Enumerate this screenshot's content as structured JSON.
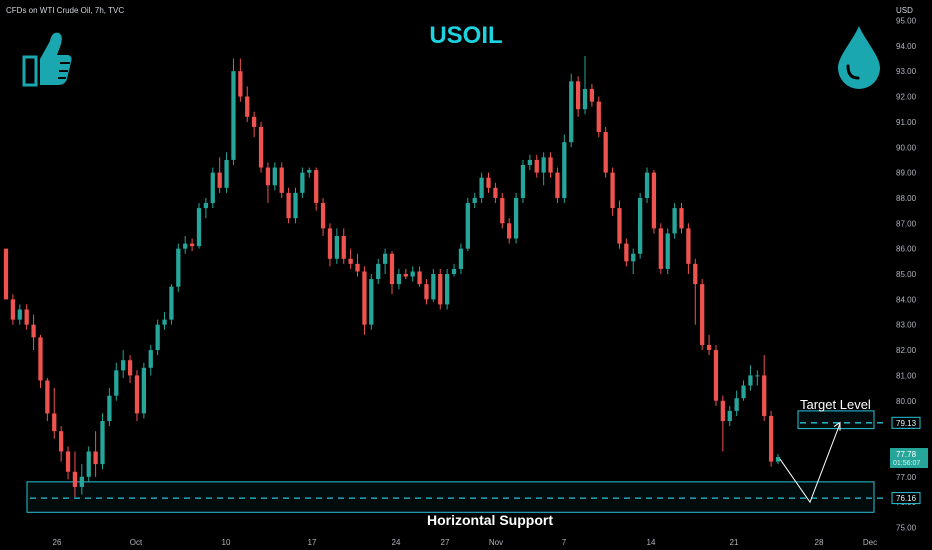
{
  "header": {
    "symbol_line": "CFDs on WTI Crude Oil, 7h, TVC",
    "title": "USOIL",
    "currency": "USD"
  },
  "icons": {
    "left": "thumbs-up-icon",
    "right": "water-drop-icon",
    "accent_color": "#1aa7b0"
  },
  "annotations": {
    "target_label": "Target Level",
    "support_label": "Horizontal Support"
  },
  "chart_data": {
    "type": "candlestick",
    "title": "USOIL",
    "ylabel": "USD",
    "ylim": [
      74.5,
      95.5
    ],
    "yticks": [
      75,
      76,
      77,
      78,
      79,
      80,
      81,
      82,
      83,
      84,
      85,
      86,
      87,
      88,
      89,
      90,
      91,
      92,
      93,
      94,
      95
    ],
    "xticks": [
      "26",
      "Oct",
      "10",
      "17",
      "24",
      "27",
      "Nov",
      "7",
      "14",
      "21",
      "28",
      "Dec"
    ],
    "colors": {
      "up": "#26a69a",
      "down": "#ef5350",
      "levels": "#29c4d8"
    },
    "price_labels": {
      "target": "79.13",
      "current": "77.78",
      "timer": "01:56:07",
      "support": "76.16"
    },
    "levels": {
      "target": 79.13,
      "support": 76.16,
      "support_zone": [
        75.6,
        76.8
      ],
      "target_zone": [
        78.9,
        79.6
      ]
    },
    "projection": [
      [
        77.7,
        0
      ],
      [
        76.0,
        5
      ],
      [
        79.1,
        10
      ]
    ],
    "ohlc": [
      [
        86.0,
        86.0,
        84.0,
        84.0
      ],
      [
        84.0,
        84.2,
        83.0,
        83.2
      ],
      [
        83.2,
        83.8,
        83.0,
        83.6
      ],
      [
        83.6,
        83.8,
        82.8,
        83.0
      ],
      [
        83.0,
        83.4,
        82.0,
        82.5
      ],
      [
        82.5,
        82.6,
        80.5,
        80.8
      ],
      [
        80.8,
        80.9,
        79.2,
        79.5
      ],
      [
        79.5,
        80.5,
        78.5,
        78.8
      ],
      [
        78.8,
        79.0,
        77.6,
        78.0
      ],
      [
        78.0,
        78.2,
        76.9,
        77.2
      ],
      [
        77.2,
        78.0,
        76.2,
        76.6
      ],
      [
        76.6,
        77.5,
        76.3,
        77.0
      ],
      [
        77.0,
        78.2,
        76.8,
        78.0
      ],
      [
        78.0,
        78.8,
        77.0,
        77.5
      ],
      [
        77.5,
        79.5,
        77.3,
        79.2
      ],
      [
        79.2,
        80.5,
        79.0,
        80.2
      ],
      [
        80.2,
        81.5,
        80.0,
        81.2
      ],
      [
        81.2,
        82.0,
        80.9,
        81.6
      ],
      [
        81.6,
        81.8,
        80.7,
        81.0
      ],
      [
        81.0,
        81.2,
        79.2,
        79.5
      ],
      [
        79.5,
        81.5,
        79.3,
        81.3
      ],
      [
        81.3,
        82.2,
        81.0,
        82.0
      ],
      [
        82.0,
        83.2,
        81.8,
        83.0
      ],
      [
        83.0,
        83.5,
        82.8,
        83.2
      ],
      [
        83.2,
        84.6,
        83.0,
        84.5
      ],
      [
        84.5,
        86.2,
        84.3,
        86.0
      ],
      [
        86.0,
        86.5,
        85.8,
        86.2
      ],
      [
        86.2,
        86.4,
        85.9,
        86.1
      ],
      [
        86.1,
        87.8,
        86.0,
        87.6
      ],
      [
        87.6,
        88.0,
        87.2,
        87.8
      ],
      [
        87.8,
        89.2,
        87.6,
        89.0
      ],
      [
        89.0,
        89.6,
        88.2,
        88.4
      ],
      [
        88.4,
        89.8,
        88.2,
        89.5
      ],
      [
        89.5,
        93.5,
        89.3,
        93.0
      ],
      [
        93.0,
        93.5,
        91.8,
        92.0
      ],
      [
        92.0,
        92.4,
        91.0,
        91.2
      ],
      [
        91.2,
        91.4,
        90.4,
        90.8
      ],
      [
        90.8,
        91.0,
        89.0,
        89.2
      ],
      [
        89.2,
        89.4,
        87.8,
        88.5
      ],
      [
        88.5,
        89.4,
        88.3,
        89.2
      ],
      [
        89.2,
        89.4,
        88.0,
        88.2
      ],
      [
        88.2,
        88.4,
        87.0,
        87.2
      ],
      [
        87.2,
        88.4,
        87.0,
        88.2
      ],
      [
        88.2,
        89.2,
        88.0,
        89.0
      ],
      [
        89.0,
        89.2,
        88.8,
        89.1
      ],
      [
        89.1,
        89.2,
        87.5,
        87.8
      ],
      [
        87.8,
        88.0,
        86.5,
        86.8
      ],
      [
        86.8,
        87.0,
        85.3,
        85.6
      ],
      [
        85.6,
        86.8,
        85.4,
        86.5
      ],
      [
        86.5,
        86.8,
        85.4,
        85.6
      ],
      [
        85.6,
        86.0,
        85.2,
        85.4
      ],
      [
        85.4,
        85.8,
        84.9,
        85.1
      ],
      [
        85.1,
        85.3,
        82.6,
        83.0
      ],
      [
        83.0,
        85.0,
        82.8,
        84.8
      ],
      [
        84.8,
        85.6,
        84.6,
        85.4
      ],
      [
        85.4,
        86.0,
        85.0,
        85.8
      ],
      [
        85.8,
        85.9,
        84.2,
        84.6
      ],
      [
        84.6,
        85.2,
        84.4,
        85.0
      ],
      [
        85.0,
        85.2,
        84.8,
        84.9
      ],
      [
        84.9,
        85.3,
        84.7,
        85.1
      ],
      [
        85.1,
        85.3,
        84.5,
        84.6
      ],
      [
        84.6,
        84.8,
        83.8,
        84.0
      ],
      [
        84.0,
        85.2,
        83.9,
        85.0
      ],
      [
        85.0,
        85.2,
        83.6,
        83.8
      ],
      [
        83.8,
        85.2,
        83.6,
        85.0
      ],
      [
        85.0,
        85.4,
        84.9,
        85.2
      ],
      [
        85.2,
        86.2,
        85.0,
        86.0
      ],
      [
        86.0,
        88.0,
        85.9,
        87.8
      ],
      [
        87.8,
        88.2,
        87.6,
        88.0
      ],
      [
        88.0,
        89.0,
        87.8,
        88.8
      ],
      [
        88.8,
        89.0,
        88.2,
        88.4
      ],
      [
        88.4,
        88.6,
        87.8,
        88.0
      ],
      [
        88.0,
        88.2,
        86.8,
        87.0
      ],
      [
        87.0,
        87.2,
        86.2,
        86.4
      ],
      [
        86.4,
        88.2,
        86.2,
        88.0
      ],
      [
        88.0,
        89.5,
        87.8,
        89.3
      ],
      [
        89.3,
        89.7,
        89.1,
        89.5
      ],
      [
        89.5,
        89.7,
        88.8,
        89.0
      ],
      [
        89.0,
        89.8,
        88.5,
        89.6
      ],
      [
        89.6,
        89.8,
        88.8,
        89.0
      ],
      [
        89.0,
        89.2,
        87.8,
        88.0
      ],
      [
        88.0,
        90.5,
        87.8,
        90.2
      ],
      [
        90.2,
        92.9,
        90.0,
        92.6
      ],
      [
        92.6,
        92.8,
        91.2,
        91.5
      ],
      [
        91.5,
        93.6,
        91.3,
        92.3
      ],
      [
        92.3,
        92.5,
        91.6,
        91.8
      ],
      [
        91.8,
        92.0,
        90.4,
        90.6
      ],
      [
        90.6,
        90.8,
        88.8,
        89.0
      ],
      [
        89.0,
        89.2,
        87.3,
        87.6
      ],
      [
        87.6,
        87.9,
        86.0,
        86.2
      ],
      [
        86.2,
        86.4,
        85.3,
        85.5
      ],
      [
        85.5,
        86.0,
        85.0,
        85.8
      ],
      [
        85.8,
        88.2,
        85.6,
        88.0
      ],
      [
        88.0,
        89.2,
        87.8,
        89.0
      ],
      [
        89.0,
        89.1,
        86.6,
        86.8
      ],
      [
        86.8,
        87.0,
        85.0,
        85.2
      ],
      [
        85.2,
        86.8,
        85.0,
        86.6
      ],
      [
        86.6,
        87.8,
        86.4,
        87.6
      ],
      [
        87.6,
        87.8,
        86.6,
        86.8
      ],
      [
        86.8,
        87.0,
        85.0,
        85.4
      ],
      [
        85.4,
        85.6,
        83.0,
        84.6
      ],
      [
        84.6,
        84.8,
        82.0,
        82.2
      ],
      [
        82.2,
        82.6,
        81.8,
        82.0
      ],
      [
        82.0,
        82.2,
        79.8,
        80.0
      ],
      [
        80.0,
        80.2,
        78.0,
        79.2
      ],
      [
        79.2,
        79.8,
        79.0,
        79.6
      ],
      [
        79.6,
        80.4,
        79.4,
        80.1
      ],
      [
        80.1,
        80.8,
        80.0,
        80.6
      ],
      [
        80.6,
        81.4,
        80.4,
        81.0
      ],
      [
        81.0,
        81.2,
        80.6,
        81.0
      ],
      [
        81.0,
        81.8,
        79.2,
        79.4
      ],
      [
        79.4,
        79.6,
        77.4,
        77.6
      ],
      [
        77.6,
        77.9,
        77.5,
        77.78
      ]
    ]
  }
}
